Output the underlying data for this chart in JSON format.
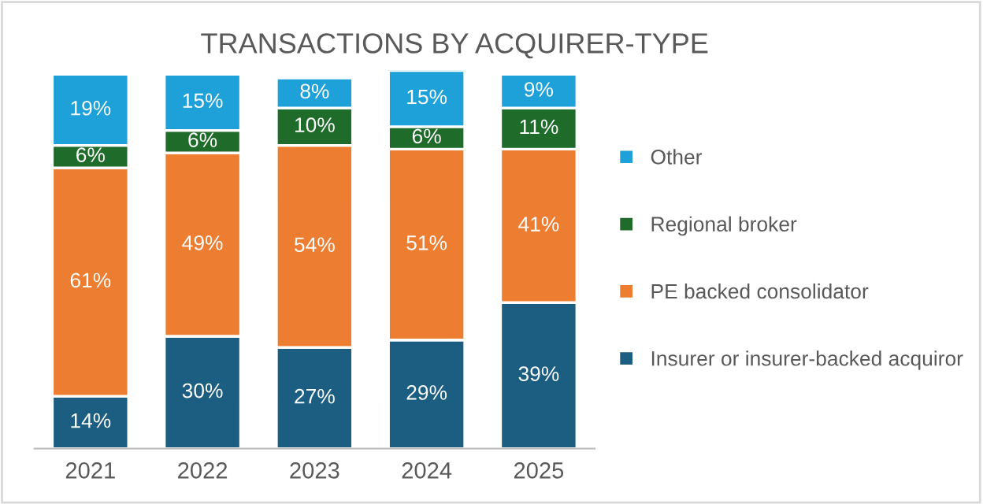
{
  "chart_data": {
    "type": "bar",
    "title": "TRANSACTIONS BY ACQUIRER-TYPE",
    "categories": [
      "2021",
      "2022",
      "2023",
      "2024",
      "2025"
    ],
    "stacked": true,
    "legend": "right",
    "tick_labels": "x",
    "grid": false,
    "series": [
      {
        "name": "Insurer or insurer-backed acquiror",
        "color": "#1b5e82",
        "values": [
          14,
          30,
          27,
          29,
          39
        ],
        "value_labels": [
          "14%",
          "30%",
          "27%",
          "29%",
          "39%"
        ]
      },
      {
        "name": "PE backed consolidator",
        "color": "#ed7d31",
        "values": [
          61,
          49,
          54,
          51,
          41
        ],
        "value_labels": [
          "61%",
          "49%",
          "54%",
          "51%",
          "41%"
        ]
      },
      {
        "name": "Regional broker",
        "color": "#1e6b2a",
        "values": [
          6,
          6,
          10,
          6,
          11
        ],
        "value_labels": [
          "6%",
          "6%",
          "10%",
          "6%",
          "11%"
        ]
      },
      {
        "name": "Other",
        "color": "#1ea0d8",
        "values": [
          19,
          15,
          8,
          15,
          9
        ],
        "value_labels": [
          "19%",
          "15%",
          "8%",
          "15%",
          "9%"
        ]
      }
    ]
  }
}
